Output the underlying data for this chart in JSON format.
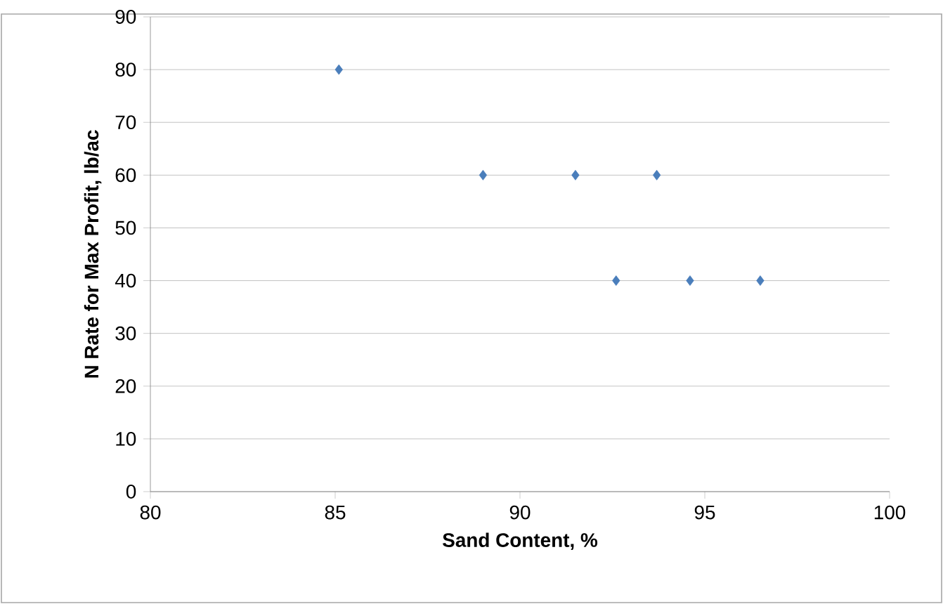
{
  "chart_data": {
    "type": "scatter",
    "xlabel": "Sand Content, %",
    "ylabel": "N Rate for Max Profit, lb/ac",
    "x": [
      85.1,
      89.0,
      91.5,
      93.7,
      92.6,
      94.6,
      96.5
    ],
    "values": [
      80,
      60,
      60,
      60,
      40,
      40,
      40
    ],
    "color": "#4a7ebb",
    "marker": "diamond",
    "xlim": [
      80,
      100
    ],
    "xticks": [
      80,
      85,
      90,
      95,
      100
    ],
    "ylim": [
      0,
      90
    ],
    "yticks": [
      0,
      10,
      20,
      30,
      40,
      50,
      60,
      70,
      80,
      90
    ],
    "grid": "y"
  }
}
